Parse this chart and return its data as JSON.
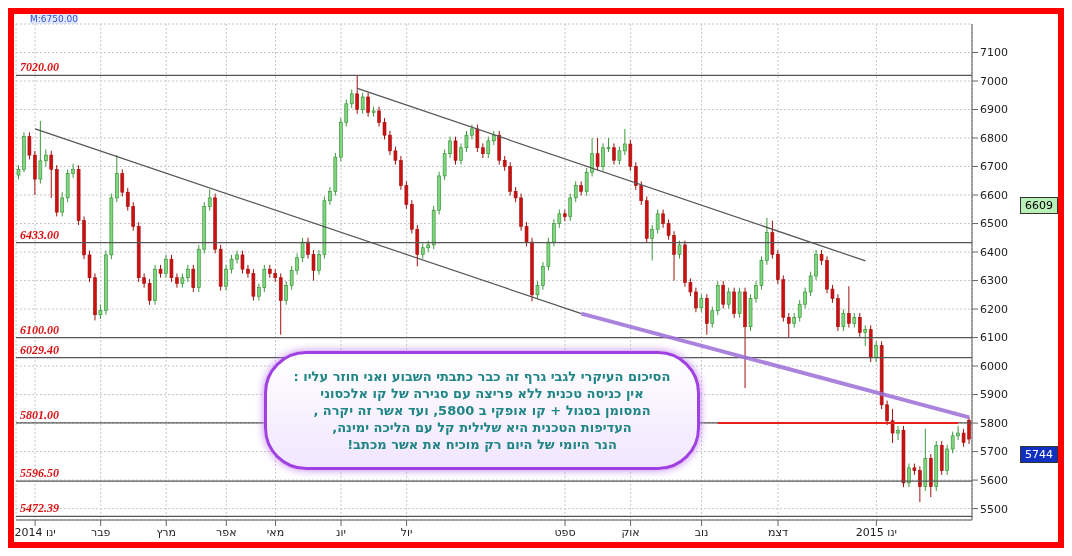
{
  "chart_data": {
    "type": "candlestick",
    "categories": [
      null,
      null,
      null,
      "ינו 2014",
      null,
      null,
      null,
      null,
      null,
      null,
      null,
      null,
      null,
      null,
      null,
      "פבר",
      null,
      null,
      null,
      null,
      null,
      null,
      null,
      null,
      null,
      null,
      null,
      "מרץ",
      null,
      null,
      null,
      null,
      null,
      null,
      null,
      null,
      null,
      null,
      "אפר",
      null,
      null,
      null,
      null,
      null,
      null,
      null,
      null,
      "מאי",
      null,
      null,
      null,
      null,
      null,
      null,
      null,
      null,
      null,
      null,
      null,
      "יונ",
      null,
      null,
      null,
      null,
      null,
      null,
      null,
      null,
      null,
      null,
      null,
      "יול",
      null,
      null,
      null,
      null,
      null,
      null,
      null,
      null,
      null,
      null,
      null,
      null,
      null,
      null,
      null,
      null,
      null,
      null,
      null,
      null,
      null,
      null,
      null,
      null,
      null,
      null,
      null,
      null,
      "ספט",
      null,
      null,
      null,
      null,
      null,
      null,
      null,
      null,
      null,
      null,
      null,
      "אוק",
      null,
      null,
      null,
      null,
      null,
      null,
      null,
      null,
      null,
      null,
      null,
      null,
      "נוב",
      null,
      null,
      null,
      null,
      null,
      null,
      null,
      null,
      null,
      null,
      null,
      null,
      null,
      "דצמ",
      null,
      null,
      null,
      null,
      null,
      null,
      null,
      null,
      null,
      null,
      null,
      null,
      null,
      null,
      null,
      null,
      null,
      "ינו 2015",
      null,
      null,
      null,
      null,
      null,
      null,
      null,
      null,
      null,
      null,
      null,
      null,
      null,
      null,
      null,
      null,
      null
    ],
    "ohlc": [
      [
        6670,
        6705,
        6655,
        6690
      ],
      [
        6690,
        6820,
        6680,
        6805
      ],
      [
        6805,
        6820,
        6725,
        6740
      ],
      [
        6740,
        6755,
        6600,
        6656
      ],
      [
        6656,
        6860,
        6640,
        6720
      ],
      [
        6720,
        6760,
        6700,
        6740
      ],
      [
        6740,
        6755,
        6590,
        6690
      ],
      [
        6690,
        6705,
        6525,
        6540
      ],
      [
        6540,
        6610,
        6525,
        6590
      ],
      [
        6590,
        6690,
        6575,
        6675
      ],
      [
        6675,
        6710,
        6660,
        6690
      ],
      [
        6690,
        6705,
        6495,
        6510
      ],
      [
        6510,
        6525,
        6375,
        6390
      ],
      [
        6390,
        6405,
        6295,
        6310
      ],
      [
        6310,
        6325,
        6160,
        6180
      ],
      [
        6180,
        6215,
        6165,
        6195
      ],
      [
        6195,
        6405,
        6180,
        6390
      ],
      [
        6390,
        6605,
        6375,
        6590
      ],
      [
        6590,
        6740,
        6575,
        6675
      ],
      [
        6675,
        6690,
        6595,
        6610
      ],
      [
        6610,
        6625,
        6545,
        6560
      ],
      [
        6560,
        6575,
        6475,
        6490
      ],
      [
        6490,
        6505,
        6295,
        6310
      ],
      [
        6310,
        6325,
        6275,
        6290
      ],
      [
        6290,
        6305,
        6215,
        6230
      ],
      [
        6230,
        6355,
        6215,
        6340
      ],
      [
        6340,
        6355,
        6310,
        6325
      ],
      [
        6325,
        6390,
        6310,
        6375
      ],
      [
        6375,
        6390,
        6295,
        6310
      ],
      [
        6310,
        6325,
        6275,
        6290
      ],
      [
        6290,
        6325,
        6275,
        6310
      ],
      [
        6310,
        6355,
        6295,
        6340
      ],
      [
        6340,
        6355,
        6260,
        6275
      ],
      [
        6275,
        6425,
        6260,
        6410
      ],
      [
        6410,
        6575,
        6395,
        6560
      ],
      [
        6560,
        6620,
        6545,
        6590
      ],
      [
        6590,
        6605,
        6395,
        6410
      ],
      [
        6410,
        6425,
        6265,
        6280
      ],
      [
        6280,
        6355,
        6265,
        6340
      ],
      [
        6340,
        6390,
        6325,
        6375
      ],
      [
        6375,
        6405,
        6360,
        6390
      ],
      [
        6390,
        6405,
        6325,
        6340
      ],
      [
        6340,
        6355,
        6310,
        6325
      ],
      [
        6325,
        6340,
        6230,
        6245
      ],
      [
        6245,
        6290,
        6230,
        6275
      ],
      [
        6275,
        6355,
        6260,
        6340
      ],
      [
        6340,
        6355,
        6310,
        6325
      ],
      [
        6325,
        6340,
        6295,
        6310
      ],
      [
        6310,
        6325,
        6110,
        6230
      ],
      [
        6230,
        6298,
        6215,
        6283
      ],
      [
        6283,
        6351,
        6268,
        6336
      ],
      [
        6336,
        6395,
        6321,
        6380
      ],
      [
        6380,
        6450,
        6365,
        6435
      ],
      [
        6435,
        6450,
        6377,
        6392
      ],
      [
        6392,
        6407,
        6300,
        6336
      ],
      [
        6336,
        6407,
        6321,
        6392
      ],
      [
        6392,
        6595,
        6377,
        6580
      ],
      [
        6580,
        6628,
        6565,
        6613
      ],
      [
        6613,
        6748,
        6598,
        6733
      ],
      [
        6733,
        6870,
        6718,
        6855
      ],
      [
        6855,
        6935,
        6840,
        6920
      ],
      [
        6920,
        6970,
        6905,
        6955
      ],
      [
        6955,
        7020,
        6885,
        6900
      ],
      [
        6900,
        6959,
        6885,
        6944
      ],
      [
        6944,
        6959,
        6875,
        6890
      ],
      [
        6890,
        6910,
        6875,
        6895
      ],
      [
        6895,
        6910,
        6840,
        6855
      ],
      [
        6855,
        6870,
        6795,
        6810
      ],
      [
        6810,
        6825,
        6740,
        6755
      ],
      [
        6755,
        6770,
        6707,
        6722
      ],
      [
        6722,
        6737,
        6618,
        6633
      ],
      [
        6633,
        6648,
        6552,
        6567
      ],
      [
        6567,
        6582,
        6465,
        6480
      ],
      [
        6480,
        6495,
        6350,
        6392
      ],
      [
        6392,
        6430,
        6377,
        6415
      ],
      [
        6415,
        6440,
        6400,
        6425
      ],
      [
        6425,
        6562,
        6410,
        6547
      ],
      [
        6547,
        6682,
        6532,
        6667
      ],
      [
        6667,
        6760,
        6652,
        6745
      ],
      [
        6745,
        6805,
        6730,
        6790
      ],
      [
        6790,
        6805,
        6707,
        6722
      ],
      [
        6722,
        6781,
        6707,
        6766
      ],
      [
        6766,
        6825,
        6751,
        6810
      ],
      [
        6810,
        6847,
        6795,
        6832
      ],
      [
        6832,
        6847,
        6751,
        6766
      ],
      [
        6766,
        6781,
        6730,
        6745
      ],
      [
        6745,
        6805,
        6730,
        6790
      ],
      [
        6790,
        6825,
        6775,
        6810
      ],
      [
        6810,
        6825,
        6707,
        6722
      ],
      [
        6722,
        6737,
        6685,
        6700
      ],
      [
        6700,
        6715,
        6598,
        6613
      ],
      [
        6613,
        6628,
        6575,
        6590
      ],
      [
        6590,
        6605,
        6475,
        6490
      ],
      [
        6490,
        6505,
        6420,
        6435
      ],
      [
        6435,
        6450,
        6227,
        6250
      ],
      [
        6250,
        6298,
        6235,
        6283
      ],
      [
        6283,
        6365,
        6268,
        6350
      ],
      [
        6350,
        6450,
        6335,
        6435
      ],
      [
        6435,
        6515,
        6420,
        6500
      ],
      [
        6500,
        6549,
        6485,
        6534
      ],
      [
        6534,
        6549,
        6509,
        6524
      ],
      [
        6524,
        6605,
        6509,
        6590
      ],
      [
        6590,
        6648,
        6575,
        6633
      ],
      [
        6633,
        6648,
        6598,
        6613
      ],
      [
        6613,
        6695,
        6598,
        6680
      ],
      [
        6680,
        6800,
        6665,
        6745
      ],
      [
        6745,
        6800,
        6685,
        6700
      ],
      [
        6700,
        6781,
        6685,
        6766
      ],
      [
        6766,
        6800,
        6751,
        6766
      ],
      [
        6766,
        6781,
        6707,
        6722
      ],
      [
        6722,
        6770,
        6707,
        6755
      ],
      [
        6755,
        6832,
        6740,
        6779
      ],
      [
        6779,
        6794,
        6685,
        6700
      ],
      [
        6700,
        6715,
        6618,
        6633
      ],
      [
        6633,
        6648,
        6565,
        6580
      ],
      [
        6580,
        6595,
        6433,
        6448
      ],
      [
        6448,
        6495,
        6370,
        6480
      ],
      [
        6480,
        6549,
        6465,
        6534
      ],
      [
        6534,
        6549,
        6485,
        6500
      ],
      [
        6500,
        6515,
        6443,
        6458
      ],
      [
        6458,
        6473,
        6300,
        6392
      ],
      [
        6392,
        6440,
        6377,
        6425
      ],
      [
        6425,
        6440,
        6278,
        6293
      ],
      [
        6293,
        6308,
        6245,
        6260
      ],
      [
        6260,
        6275,
        6189,
        6204
      ],
      [
        6204,
        6252,
        6189,
        6237
      ],
      [
        6237,
        6252,
        6110,
        6150
      ],
      [
        6150,
        6209,
        6135,
        6194
      ],
      [
        6194,
        6298,
        6179,
        6283
      ],
      [
        6283,
        6298,
        6202,
        6217
      ],
      [
        6217,
        6275,
        6202,
        6260
      ],
      [
        6260,
        6275,
        6169,
        6184
      ],
      [
        6184,
        6275,
        6169,
        6260
      ],
      [
        6260,
        6275,
        5923,
        6138
      ],
      [
        6138,
        6252,
        6123,
        6237
      ],
      [
        6237,
        6298,
        6222,
        6283
      ],
      [
        6283,
        6385,
        6268,
        6370
      ],
      [
        6370,
        6520,
        6355,
        6468
      ],
      [
        6468,
        6510,
        6377,
        6392
      ],
      [
        6392,
        6407,
        6288,
        6303
      ],
      [
        6303,
        6318,
        6156,
        6171
      ],
      [
        6171,
        6186,
        6100,
        6150
      ],
      [
        6150,
        6186,
        6135,
        6171
      ],
      [
        6171,
        6232,
        6156,
        6217
      ],
      [
        6217,
        6275,
        6202,
        6260
      ],
      [
        6260,
        6331,
        6245,
        6316
      ],
      [
        6316,
        6407,
        6301,
        6392
      ],
      [
        6392,
        6407,
        6355,
        6370
      ],
      [
        6370,
        6385,
        6255,
        6270
      ],
      [
        6270,
        6285,
        6222,
        6237
      ],
      [
        6237,
        6252,
        6123,
        6138
      ],
      [
        6138,
        6199,
        6123,
        6184
      ],
      [
        6184,
        6280,
        6135,
        6150
      ],
      [
        6150,
        6186,
        6135,
        6171
      ],
      [
        6171,
        6186,
        6103,
        6118
      ],
      [
        6118,
        6143,
        6070,
        6128
      ],
      [
        6128,
        6143,
        6014,
        6029
      ],
      [
        6029,
        6087,
        6014,
        6072
      ],
      [
        6072,
        6087,
        5849,
        5864
      ],
      [
        5864,
        5879,
        5793,
        5808
      ],
      [
        5808,
        5850,
        5730,
        5765
      ],
      [
        5765,
        5790,
        5740,
        5775
      ],
      [
        5775,
        5790,
        5575,
        5590
      ],
      [
        5590,
        5658,
        5575,
        5643
      ],
      [
        5643,
        5658,
        5618,
        5633
      ],
      [
        5633,
        5648,
        5523,
        5577
      ],
      [
        5577,
        5780,
        5562,
        5676
      ],
      [
        5676,
        5691,
        5540,
        5577
      ],
      [
        5577,
        5737,
        5562,
        5722
      ],
      [
        5722,
        5737,
        5618,
        5633
      ],
      [
        5633,
        5724,
        5618,
        5709
      ],
      [
        5709,
        5770,
        5694,
        5755
      ],
      [
        5755,
        5790,
        5740,
        5765
      ],
      [
        5765,
        5780,
        5717,
        5732
      ],
      [
        5810,
        5820,
        5727,
        5744
      ]
    ],
    "series": [
      {
        "type": "line",
        "color": "#555555",
        "values": [
          null,
          null,
          null,
          6832,
          null,
          null,
          null,
          null,
          null,
          null,
          null,
          null,
          null,
          null,
          null,
          null,
          null,
          null,
          null,
          null,
          null,
          null,
          null,
          null,
          null,
          null,
          null,
          null,
          null,
          null,
          null,
          null,
          null,
          null,
          null,
          null,
          null,
          null,
          null,
          null,
          null,
          null,
          null,
          null,
          null,
          null,
          null,
          null,
          null,
          null,
          null,
          null,
          null,
          null,
          null,
          null,
          null,
          null,
          null,
          null,
          null,
          null,
          null,
          null,
          null,
          null,
          null,
          null,
          null,
          null,
          null,
          null,
          null,
          null,
          null,
          null,
          null,
          null,
          null,
          null,
          null,
          null,
          null,
          null,
          null,
          null,
          null,
          null,
          null,
          null,
          null,
          null,
          null,
          null,
          null,
          null,
          null,
          null,
          null,
          null,
          null,
          null,
          null,
          6184,
          null,
          null,
          null,
          null,
          null,
          null,
          null,
          null,
          null,
          null,
          null,
          null,
          null,
          null,
          null,
          null,
          null,
          null,
          null,
          null,
          null,
          null,
          null,
          null,
          null,
          null,
          null,
          null,
          null,
          null,
          null,
          null,
          null,
          null,
          null,
          null,
          null,
          null,
          null,
          null,
          null,
          null,
          null,
          null,
          null,
          null,
          null,
          null,
          null,
          null,
          null,
          null,
          null,
          null,
          null,
          null,
          null,
          null,
          null,
          null,
          null,
          null,
          null,
          null,
          null,
          null,
          null,
          null,
          null,
          null,
          null
        ]
      },
      {
        "type": "line",
        "color": "#9b6fd6",
        "values": [
          null,
          null,
          null,
          null,
          null,
          null,
          null,
          null,
          null,
          null,
          null,
          null,
          null,
          null,
          null,
          null,
          null,
          null,
          null,
          null,
          null,
          null,
          null,
          null,
          null,
          null,
          null,
          null,
          null,
          null,
          null,
          null,
          null,
          null,
          null,
          null,
          null,
          null,
          null,
          null,
          null,
          null,
          null,
          null,
          null,
          null,
          null,
          null,
          null,
          null,
          null,
          null,
          null,
          null,
          null,
          null,
          null,
          null,
          null,
          null,
          null,
          null,
          null,
          null,
          null,
          null,
          null,
          null,
          null,
          null,
          null,
          null,
          null,
          null,
          null,
          null,
          null,
          null,
          null,
          null,
          null,
          null,
          null,
          null,
          null,
          null,
          null,
          null,
          null,
          null,
          null,
          null,
          null,
          null,
          null,
          null,
          null,
          null,
          null,
          null,
          null,
          null,
          null,
          6184,
          null,
          null,
          null,
          null,
          null,
          null,
          null,
          null,
          null,
          null,
          null,
          null,
          null,
          null,
          null,
          null,
          null,
          null,
          null,
          null,
          null,
          null,
          null,
          null,
          null,
          null,
          null,
          null,
          null,
          null,
          null,
          null,
          null,
          null,
          null,
          null,
          null,
          null,
          null,
          null,
          null,
          null,
          null,
          null,
          null,
          null,
          null,
          null,
          null,
          null,
          null,
          null,
          null,
          null,
          null,
          null,
          null,
          null,
          null,
          null,
          null,
          null,
          null,
          null,
          null,
          null,
          null,
          null,
          null,
          null,
          5820
        ]
      },
      {
        "type": "line",
        "color": "#555555",
        "values": [
          null,
          null,
          null,
          null,
          null,
          null,
          null,
          null,
          null,
          null,
          null,
          null,
          null,
          null,
          null,
          null,
          null,
          null,
          null,
          null,
          null,
          null,
          null,
          null,
          null,
          null,
          null,
          null,
          null,
          null,
          null,
          null,
          null,
          null,
          null,
          null,
          null,
          null,
          null,
          null,
          null,
          null,
          null,
          null,
          null,
          null,
          null,
          null,
          null,
          null,
          null,
          null,
          null,
          null,
          null,
          null,
          null,
          null,
          null,
          null,
          null,
          null,
          6974,
          null,
          null,
          null,
          null,
          null,
          null,
          null,
          null,
          null,
          null,
          null,
          null,
          null,
          null,
          null,
          null,
          null,
          null,
          null,
          null,
          null,
          null,
          null,
          null,
          null,
          null,
          null,
          null,
          null,
          null,
          null,
          null,
          null,
          null,
          null,
          null,
          null,
          null,
          null,
          null,
          null,
          null,
          null,
          null,
          null,
          null,
          null,
          null,
          null,
          null,
          null,
          null,
          null,
          null,
          null,
          null,
          null,
          null,
          null,
          null,
          null,
          null,
          null,
          null,
          null,
          null,
          null,
          null,
          null,
          null,
          null,
          null,
          null,
          null,
          null,
          null,
          null,
          null,
          null,
          null,
          null,
          null,
          null,
          null,
          null,
          null,
          null,
          null,
          null,
          null,
          null,
          null,
          6369,
          null,
          null,
          null,
          null,
          null,
          null,
          null,
          null,
          null,
          null,
          null,
          null,
          null,
          null,
          null,
          null,
          null,
          null,
          null
        ]
      },
      {
        "type": "line",
        "color": "#e8201c",
        "values": [
          null,
          null,
          null,
          null,
          null,
          null,
          null,
          null,
          null,
          null,
          null,
          null,
          null,
          null,
          null,
          null,
          null,
          null,
          null,
          null,
          null,
          null,
          null,
          null,
          null,
          null,
          null,
          null,
          null,
          null,
          null,
          null,
          null,
          null,
          null,
          null,
          null,
          null,
          null,
          null,
          null,
          null,
          null,
          null,
          null,
          null,
          null,
          null,
          null,
          null,
          null,
          null,
          null,
          null,
          null,
          null,
          null,
          null,
          null,
          null,
          null,
          null,
          null,
          null,
          null,
          null,
          null,
          null,
          null,
          null,
          null,
          null,
          null,
          null,
          null,
          null,
          null,
          null,
          null,
          null,
          null,
          null,
          null,
          null,
          null,
          null,
          null,
          null,
          null,
          null,
          null,
          null,
          null,
          null,
          null,
          null,
          null,
          null,
          null,
          null,
          null,
          null,
          null,
          null,
          null,
          null,
          null,
          null,
          null,
          null,
          null,
          null,
          null,
          null,
          null,
          null,
          null,
          null,
          null,
          null,
          null,
          null,
          null,
          null,
          null,
          null,
          null,
          null,
          5800,
          null,
          null,
          null,
          null,
          null,
          null,
          null,
          null,
          null,
          null,
          null,
          null,
          null,
          null,
          null,
          null,
          null,
          null,
          null,
          null,
          null,
          null,
          null,
          null,
          null,
          null,
          null,
          null,
          null,
          null,
          null,
          null,
          null,
          null,
          null,
          null,
          null,
          null,
          null,
          null,
          null,
          null,
          null,
          5800,
          null,
          null
        ]
      }
    ],
    "ylim": [
      5460,
      7200
    ],
    "yticks": [
      5500,
      5600,
      5700,
      5800,
      5900,
      6000,
      6100,
      6200,
      6300,
      6400,
      6500,
      6600,
      6700,
      6800,
      6900,
      7000,
      7100
    ],
    "grid": true,
    "line_style": "solid",
    "marker": "none",
    "ref_lines": [
      {
        "axis": "y",
        "value": 7020,
        "label": "7020.00",
        "color": "#555555"
      },
      {
        "axis": "y",
        "value": 6433,
        "label": "6433.00",
        "color": "#555555"
      },
      {
        "axis": "y",
        "value": 6100,
        "label": "6100.00",
        "color": "#555555"
      },
      {
        "axis": "y",
        "value": 6029.4,
        "label": "6029.40",
        "color": "#555555"
      },
      {
        "axis": "y",
        "value": 5801,
        "label": "5801.00",
        "color": "#555555"
      },
      {
        "axis": "y",
        "value": 5596.5,
        "label": "5596.50",
        "color": "#555555"
      },
      {
        "axis": "y",
        "value": 5472.39,
        "label": "5472.39",
        "color": "#555555"
      }
    ],
    "annotations": [
      "M:6750.00",
      "6609",
      "5744",
      "הסיכום העיקרי לגבי גרף זה כבר כתבתי השבוע ואני חוזר עליו :\nאין כניסה טכנית ללא פריצה עם סגירה של קו אלכסוני\nהמסומן בסגול + קו אופקי ב 5800, ועד אשר זה יקרה ,\nהעדיפות הטכנית היא שלילית קל עם הליכה ימינה,\nהנר היומי של היום רק מוכיח את אשר מכתב!"
    ]
  }
}
